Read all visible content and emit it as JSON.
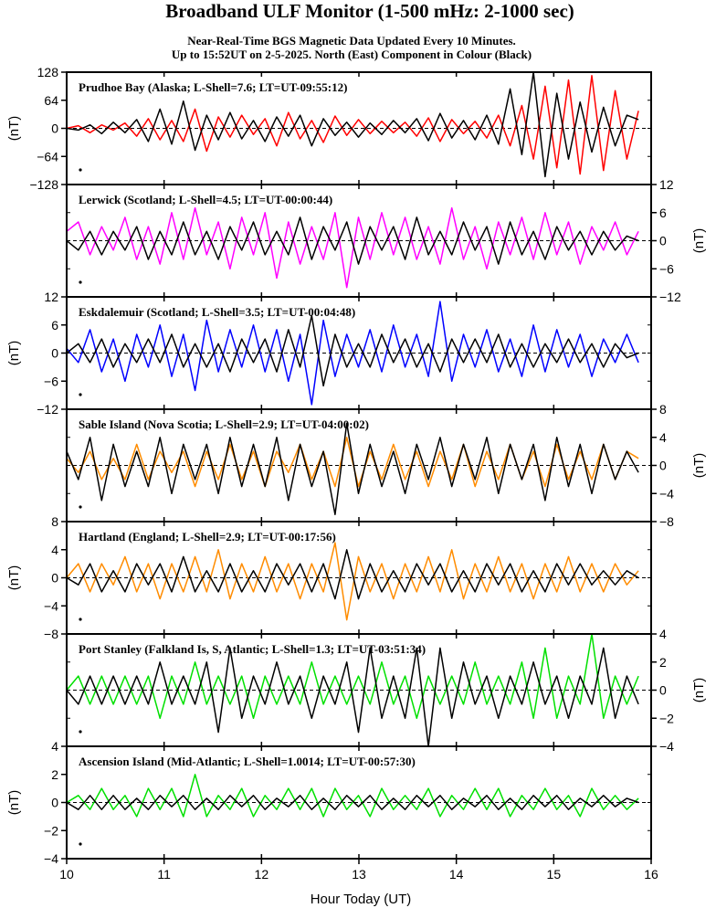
{
  "title": "Broadband ULF Monitor (1-500 mHz: 2-1000 sec)",
  "subtitle_line1": "Near-Real-Time BGS Magnetic Data Updated Every 10 Minutes.",
  "subtitle_line2": "Up to 15:52UT on 2-5-2025. North (East) Component in Colour (Black)",
  "xlabel": "Hour Today (UT)",
  "chart_data": {
    "type": "line",
    "x_range": [
      10,
      16
    ],
    "x_ticks": [
      "10",
      "11",
      "12",
      "13",
      "14",
      "15",
      "16"
    ],
    "data_end_hour": 15.87,
    "series_note": "North component in colour, East component in black",
    "panels": [
      {
        "label": "Prudhoe Bay (Alaska; L-Shell=7.6; LT=UT-09:55:12)",
        "ylim": [
          -128,
          128
        ],
        "yticks": [
          "128",
          "64",
          "0",
          "-64",
          "-128"
        ],
        "ylabel": "(nT)",
        "axis_side": "left",
        "north_color": "#ff0000",
        "east_color": "#000000",
        "north": [
          0,
          6,
          -10,
          8,
          -4,
          12,
          -18,
          22,
          -26,
          18,
          -30,
          44,
          -52,
          26,
          -20,
          30,
          -14,
          22,
          -40,
          36,
          -24,
          18,
          -32,
          28,
          -16,
          20,
          -12,
          16,
          -10,
          14,
          -18,
          24,
          -30,
          20,
          -12,
          16,
          -22,
          30,
          -40,
          52,
          -70,
          96,
          -90,
          110,
          -104,
          120,
          -96,
          86,
          -70,
          40
        ],
        "east": [
          0,
          -4,
          8,
          -12,
          14,
          -10,
          20,
          -30,
          44,
          -36,
          62,
          -50,
          30,
          -26,
          36,
          -24,
          18,
          -30,
          26,
          -18,
          30,
          -40,
          22,
          -16,
          14,
          -20,
          12,
          -14,
          18,
          -10,
          22,
          -28,
          34,
          -22,
          18,
          -26,
          30,
          -36,
          90,
          -60,
          128,
          -110,
          80,
          -70,
          60,
          -54,
          48,
          -40,
          30,
          20
        ]
      },
      {
        "label": "Lerwick (Scotland; L-Shell=4.5; LT=UT-00:00:44)",
        "ylim": [
          -12,
          12
        ],
        "yticks": [
          "12",
          "6",
          "0",
          "-6",
          "-12"
        ],
        "ylabel": "(nT)",
        "axis_side": "right",
        "north_color": "#ff00ff",
        "east_color": "#000000",
        "north": [
          2,
          4,
          -3,
          3,
          -2,
          5,
          -4,
          3,
          -5,
          6,
          -4,
          7,
          -3,
          4,
          -6,
          5,
          -3,
          6,
          -8,
          4,
          -5,
          3,
          -4,
          6,
          -10,
          5,
          -4,
          6,
          -3,
          5,
          -4,
          3,
          -5,
          7,
          -4,
          3,
          -6,
          4,
          -3,
          5,
          -4,
          6,
          -3,
          4,
          -5,
          3,
          -2,
          4,
          -3,
          2
        ],
        "east": [
          0,
          -2,
          2,
          -3,
          2,
          -2,
          3,
          -4,
          2,
          -3,
          4,
          -3,
          2,
          -4,
          3,
          -2,
          4,
          -3,
          2,
          -3,
          5,
          -4,
          3,
          -2,
          4,
          -5,
          3,
          -2,
          3,
          -4,
          5,
          -3,
          2,
          -3,
          4,
          -2,
          3,
          -5,
          4,
          -3,
          2,
          -4,
          3,
          -2,
          2,
          -3,
          2,
          -2,
          1,
          0
        ]
      },
      {
        "label": "Eskdalemuir (Scotland; L-Shell=3.5; LT=UT-00:04:48)",
        "ylim": [
          -12,
          12
        ],
        "yticks": [
          "12",
          "6",
          "0",
          "-6",
          "-12"
        ],
        "ylabel": "(nT)",
        "axis_side": "left",
        "north_color": "#0000ff",
        "east_color": "#000000",
        "north": [
          1,
          -2,
          5,
          -4,
          3,
          -6,
          4,
          -3,
          6,
          -5,
          4,
          -8,
          7,
          -4,
          5,
          -3,
          6,
          -4,
          5,
          -6,
          4,
          -11,
          7,
          -5,
          4,
          -3,
          5,
          -4,
          6,
          -3,
          4,
          -5,
          11,
          -6,
          4,
          -3,
          5,
          -4,
          3,
          -5,
          6,
          -4,
          5,
          -3,
          4,
          -5,
          3,
          -2,
          4,
          -2
        ],
        "east": [
          0,
          2,
          -2,
          3,
          -3,
          2,
          -2,
          3,
          -2,
          4,
          -3,
          2,
          -3,
          2,
          -4,
          3,
          -2,
          3,
          -4,
          5,
          -3,
          8,
          -7,
          4,
          -3,
          2,
          -3,
          4,
          -2,
          3,
          -3,
          2,
          -4,
          3,
          -2,
          3,
          -2,
          4,
          -3,
          2,
          -3,
          2,
          -2,
          3,
          -2,
          2,
          -3,
          2,
          -1,
          0
        ]
      },
      {
        "label": "Sable Island (Nova Scotia; L-Shell=2.9; LT=UT-04:00:02)",
        "ylim": [
          -8,
          8
        ],
        "yticks": [
          "8",
          "4",
          "0",
          "-4",
          "-8"
        ],
        "ylabel": "(nT)",
        "axis_side": "right",
        "north_color": "#ff8c00",
        "east_color": "#000000",
        "north": [
          1,
          -1,
          2,
          -2,
          1,
          -2,
          3,
          -2,
          2,
          -1,
          2,
          -3,
          2,
          -2,
          3,
          -2,
          2,
          -3,
          2,
          -1,
          3,
          -2,
          2,
          -3,
          4,
          -3,
          2,
          -2,
          3,
          -2,
          2,
          -3,
          2,
          -2,
          3,
          -3,
          2,
          -2,
          3,
          -2,
          2,
          -3,
          3,
          -2,
          2,
          -2,
          3,
          -2,
          2,
          1
        ],
        "east": [
          2,
          -2,
          4,
          -5,
          3,
          -3,
          2,
          -3,
          4,
          -4,
          3,
          -2,
          3,
          -4,
          4,
          -3,
          3,
          -3,
          4,
          -5,
          3,
          -3,
          2,
          -7,
          6,
          -4,
          3,
          -3,
          2,
          -4,
          3,
          -2,
          4,
          -3,
          3,
          -2,
          4,
          -4,
          3,
          -2,
          3,
          -5,
          4,
          -3,
          3,
          -4,
          3,
          -2,
          2,
          -1
        ]
      },
      {
        "label": "Hartland (England; L-Shell=2.9; LT=UT-00:17:56)",
        "ylim": [
          -8,
          8
        ],
        "yticks": [
          "8",
          "4",
          "0",
          "-4",
          "-8"
        ],
        "ylabel": "(nT)",
        "axis_side": "left",
        "north_color": "#ff8c00",
        "east_color": "#000000",
        "north": [
          0,
          2,
          -2,
          2,
          -1,
          3,
          -2,
          2,
          -3,
          2,
          -2,
          3,
          -2,
          4,
          -3,
          2,
          -2,
          3,
          -2,
          2,
          -3,
          2,
          -2,
          5,
          -6,
          3,
          -2,
          2,
          -3,
          2,
          -2,
          3,
          -2,
          4,
          -3,
          2,
          -2,
          3,
          -2,
          2,
          -3,
          2,
          -2,
          3,
          -2,
          2,
          -2,
          2,
          -1,
          1
        ],
        "east": [
          0,
          -1,
          2,
          -2,
          1,
          -2,
          2,
          -1,
          2,
          -2,
          3,
          -2,
          1,
          -2,
          2,
          -2,
          1,
          -2,
          2,
          -1,
          2,
          -2,
          2,
          -3,
          4,
          -3,
          2,
          -2,
          1,
          -2,
          2,
          -1,
          2,
          -2,
          1,
          -2,
          2,
          -1,
          2,
          -2,
          1,
          -2,
          2,
          -1,
          2,
          -1,
          1,
          -1,
          1,
          0
        ]
      },
      {
        "label": "Port Stanley (Falkland Is, S, Atlantic; L-Shell=1.3; LT=UT-03:51:34)",
        "ylim": [
          -4,
          4
        ],
        "yticks": [
          "4",
          "2",
          "0",
          "-2",
          "-4"
        ],
        "ylabel": "(nT)",
        "axis_side": "right",
        "north_color": "#00e000",
        "east_color": "#000000",
        "north": [
          0,
          1,
          -1,
          1,
          -1,
          1,
          -1,
          1,
          -2,
          1,
          -1,
          2,
          -1,
          1,
          -1,
          1,
          -2,
          1,
          -1,
          1,
          -1,
          2,
          -1,
          1,
          -1,
          1,
          -1,
          2,
          -1,
          1,
          -2,
          1,
          -1,
          1,
          -1,
          2,
          -1,
          1,
          -1,
          2,
          -2,
          3,
          -2,
          1,
          -1,
          4,
          -2,
          1,
          -1,
          1
        ],
        "east": [
          0,
          -1,
          1,
          -1,
          1,
          -1,
          1,
          -1,
          2,
          -1,
          1,
          -1,
          2,
          -3,
          3,
          -2,
          1,
          -1,
          2,
          -1,
          1,
          -2,
          1,
          -1,
          2,
          -3,
          3,
          -2,
          1,
          -2,
          3,
          -4,
          3,
          -2,
          2,
          -1,
          1,
          -2,
          1,
          -1,
          2,
          -1,
          1,
          -2,
          1,
          -1,
          3,
          -2,
          1,
          -1
        ]
      },
      {
        "label": "Ascension Island (Mid-Atlantic; L-Shell=1.0014; LT=UT-00:57:30)",
        "ylim": [
          -4,
          4
        ],
        "yticks": [
          "4",
          "2",
          "0",
          "-2",
          "-4"
        ],
        "ylabel": "(nT)",
        "axis_side": "left",
        "north_color": "#00e000",
        "east_color": "#000000",
        "north": [
          0,
          0.5,
          -0.5,
          1,
          -0.5,
          0.5,
          -1,
          1,
          -0.5,
          1,
          -1,
          2,
          -1,
          0.5,
          -0.5,
          1,
          -1,
          0.5,
          -0.5,
          1,
          -0.5,
          1,
          -1,
          1,
          -0.5,
          0.5,
          -1,
          1,
          -0.5,
          0.5,
          -0.5,
          1,
          -1,
          0.5,
          -0.5,
          1,
          -0.5,
          1,
          -1,
          0.5,
          -0.5,
          1,
          -0.5,
          0.5,
          -1,
          1,
          -0.5,
          0.5,
          -0.5,
          0.3
        ],
        "east": [
          0,
          -0.5,
          0.5,
          -0.5,
          0.5,
          -0.5,
          0.3,
          -0.5,
          0.5,
          -0.3,
          0.5,
          -0.5,
          0.3,
          -0.5,
          0.5,
          -0.3,
          0.5,
          -0.5,
          0.3,
          -0.3,
          0.5,
          -0.5,
          0.3,
          -0.5,
          0.5,
          -0.3,
          0.5,
          -0.5,
          0.3,
          -0.5,
          0.5,
          -0.3,
          0.5,
          -0.5,
          0.3,
          -0.3,
          0.5,
          -0.5,
          0.3,
          -0.5,
          0.5,
          -0.3,
          0.5,
          -0.5,
          0.3,
          -0.3,
          0.5,
          -0.3,
          0.3,
          0
        ]
      }
    ]
  }
}
